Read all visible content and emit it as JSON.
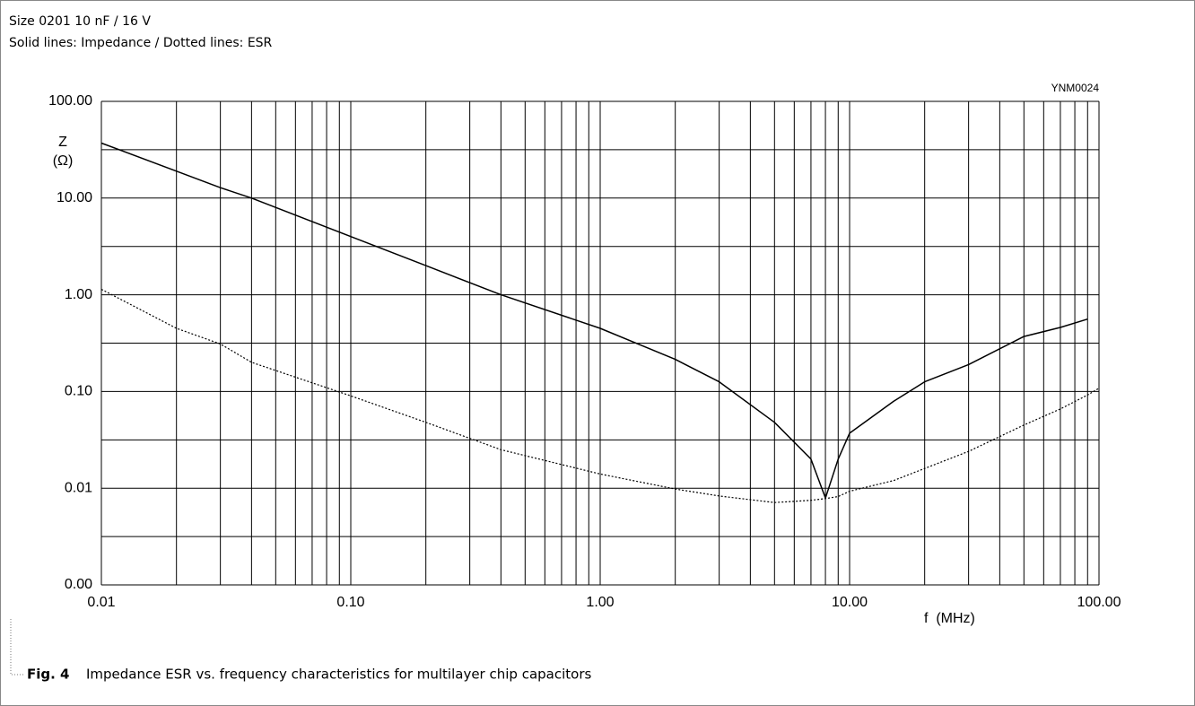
{
  "chart_data": {
    "type": "line",
    "title": "Size 0201 10 nF / 16 V",
    "subtitle": "Solid lines: Impedance / Dotted lines: ESR",
    "code": "YNM0024",
    "ylabel": [
      "Z",
      "(Ω)"
    ],
    "xlabel": "f  (MHz)",
    "caption_label": "Fig. 4",
    "caption": "Impedance ESR vs. frequency characteristics for multilayer chip capacitors",
    "xlog": true,
    "ylog": true,
    "grid": true,
    "xlim": [
      0.01,
      100
    ],
    "ylim": [
      0.001,
      100
    ],
    "xticks": [
      0.01,
      {
        "value": 0.1,
        "label": "0.10"
      },
      {
        "value": 1,
        "label": "1.00"
      },
      {
        "value": 10,
        "label": "10.00"
      },
      {
        "value": 100,
        "label": "100.00"
      }
    ],
    "yticks": [
      {
        "value": 0.001,
        "label": "0.00"
      },
      0.01,
      {
        "value": 0.1,
        "label": "0.10"
      },
      {
        "value": 1,
        "label": "1.00"
      },
      {
        "value": 10,
        "label": "10.00"
      },
      {
        "value": 100,
        "label": "100.00"
      }
    ],
    "xminor": [
      0.02,
      0.03,
      0.04,
      0.05,
      0.06,
      0.07,
      0.08,
      0.09,
      0.2,
      0.3,
      0.4,
      0.5,
      0.6,
      0.7,
      0.8,
      0.9,
      2,
      3,
      4,
      5,
      6,
      7,
      8,
      9,
      20,
      30,
      40,
      50,
      60,
      70,
      80,
      90
    ],
    "yminor": [
      0.00316,
      0.0316,
      0.316,
      3.16,
      31.6
    ],
    "x": [
      0.01,
      0.02,
      0.03,
      0.04,
      0.1,
      0.2,
      0.4,
      1,
      2,
      3,
      5,
      7,
      8,
      9,
      10,
      15,
      20,
      30,
      50,
      70,
      90,
      100
    ],
    "series": [
      {
        "style": "solid",
        "color": "#000000",
        "values": [
          37,
          19,
          12.8,
          10,
          4,
          2,
          1,
          0.45,
          0.215,
          0.126,
          0.048,
          0.02,
          0.0079,
          0.02,
          0.037,
          0.079,
          0.126,
          0.19,
          0.37,
          0.46,
          0.56,
          null
        ]
      },
      {
        "style": "dotted",
        "color": "#000000",
        "values": [
          1.14,
          0.45,
          0.31,
          0.2,
          0.09,
          0.048,
          0.025,
          0.014,
          0.0098,
          0.0083,
          0.0071,
          0.0075,
          0.0078,
          0.0082,
          0.0093,
          0.012,
          0.016,
          0.024,
          0.045,
          0.066,
          0.092,
          0.108
        ]
      }
    ]
  }
}
